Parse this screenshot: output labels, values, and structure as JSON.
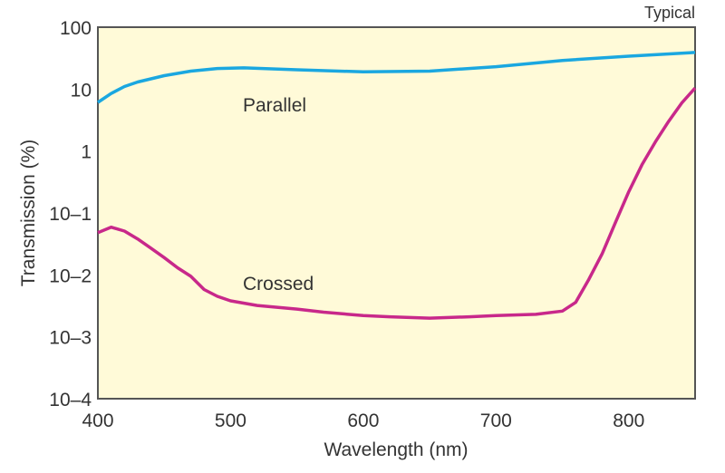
{
  "chart_data": {
    "type": "line",
    "title": "",
    "annotation_corner": "Typical",
    "xlabel": "Wavelength (nm)",
    "ylabel": "Transmission (%)",
    "xlim": [
      400,
      850
    ],
    "ylim": [
      0.0001,
      100
    ],
    "yscale": "log",
    "grid": false,
    "x_ticks": [
      400,
      500,
      600,
      700,
      800
    ],
    "x_tick_labels": [
      "400",
      "500",
      "600",
      "700",
      "800"
    ],
    "y_ticks": [
      100,
      10,
      1,
      0.1,
      0.01,
      0.001,
      0.0001
    ],
    "y_tick_labels": [
      "100",
      "10",
      "1",
      "10–1",
      "10–2",
      "10–3",
      "10–4"
    ],
    "plot_background": "#fffad8",
    "series": [
      {
        "name": "Parallel",
        "color": "#1aa7e0",
        "x": [
          400,
          410,
          420,
          430,
          450,
          470,
          490,
          510,
          550,
          600,
          650,
          700,
          750,
          800,
          850
        ],
        "y": [
          6.1,
          8.5,
          11,
          13,
          16.5,
          19.5,
          21.5,
          22,
          20.5,
          19,
          19.5,
          23,
          29,
          34,
          39
        ]
      },
      {
        "name": "Crossed",
        "color": "#c8288a",
        "x": [
          400,
          410,
          420,
          430,
          440,
          450,
          460,
          470,
          480,
          490,
          500,
          520,
          550,
          570,
          600,
          620,
          650,
          680,
          700,
          730,
          750,
          760,
          770,
          780,
          790,
          800,
          810,
          820,
          830,
          840,
          850
        ],
        "y": [
          0.048,
          0.059,
          0.051,
          0.038,
          0.027,
          0.019,
          0.013,
          0.0095,
          0.0058,
          0.0045,
          0.0038,
          0.0032,
          0.0028,
          0.0025,
          0.0022,
          0.0021,
          0.002,
          0.0021,
          0.0022,
          0.0023,
          0.0026,
          0.0036,
          0.0085,
          0.022,
          0.07,
          0.22,
          0.6,
          1.4,
          3.0,
          6.0,
          10.4
        ]
      }
    ]
  }
}
